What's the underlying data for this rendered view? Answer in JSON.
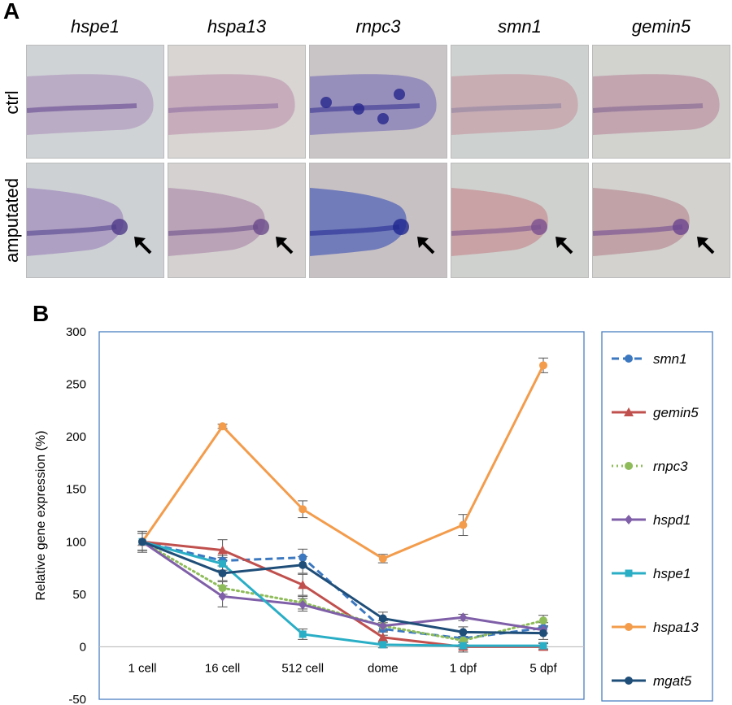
{
  "panel_a": {
    "letter": "A",
    "genes": [
      "hspe1",
      "hspa13",
      "rnpc3",
      "smn1",
      "gemin5"
    ],
    "rows": [
      "ctrl",
      "amputated"
    ]
  },
  "panel_b": {
    "letter": "B"
  },
  "chart_data": {
    "type": "line",
    "title": "",
    "xlabel": "",
    "ylabel": "Relative gene expression  (%)",
    "categories": [
      "1 cell",
      "16 cell",
      "512 cell",
      "dome",
      "1 dpf",
      "5 dpf"
    ],
    "ylim": [
      -50,
      300
    ],
    "yticks": [
      -50,
      0,
      50,
      100,
      150,
      200,
      250,
      300
    ],
    "grid": false,
    "legend": "right",
    "series": [
      {
        "name": "smn1",
        "values": [
          100,
          82,
          85,
          17,
          8,
          18
        ],
        "errors": [
          8,
          5,
          8,
          6,
          6,
          5
        ],
        "color": "#3b78c0",
        "dash": "dashed",
        "marker": "circle"
      },
      {
        "name": "gemin5",
        "values": [
          100,
          92,
          59,
          9,
          0,
          0
        ],
        "errors": [
          8,
          10,
          10,
          5,
          5,
          3
        ],
        "color": "#c0504d",
        "dash": "solid",
        "marker": "triangle"
      },
      {
        "name": "rnpc3",
        "values": [
          100,
          56,
          42,
          20,
          6,
          25
        ],
        "errors": [
          8,
          6,
          6,
          5,
          4,
          5
        ],
        "color": "#8fbc5a",
        "dash": "dotted",
        "marker": "circle"
      },
      {
        "name": "hspd1",
        "values": [
          100,
          48,
          40,
          20,
          28,
          16
        ],
        "errors": [
          8,
          10,
          6,
          5,
          3,
          3
        ],
        "color": "#7f5fa8",
        "dash": "solid",
        "marker": "diamond"
      },
      {
        "name": "hspe1",
        "values": [
          100,
          79,
          12,
          2,
          1,
          1
        ],
        "errors": [
          8,
          6,
          5,
          3,
          3,
          3
        ],
        "color": "#2aaec6",
        "dash": "solid",
        "marker": "square"
      },
      {
        "name": "hspa13",
        "values": [
          100,
          210,
          131,
          84,
          116,
          268
        ],
        "errors": [
          8,
          2,
          8,
          4,
          10,
          7
        ],
        "color": "#f39c4c",
        "dash": "solid",
        "marker": "circle"
      },
      {
        "name": "mgat5",
        "values": [
          100,
          70,
          78,
          27,
          14,
          13
        ],
        "errors": [
          10,
          7,
          8,
          6,
          5,
          6
        ],
        "color": "#1f4e79",
        "dash": "solid",
        "marker": "circle"
      }
    ]
  }
}
